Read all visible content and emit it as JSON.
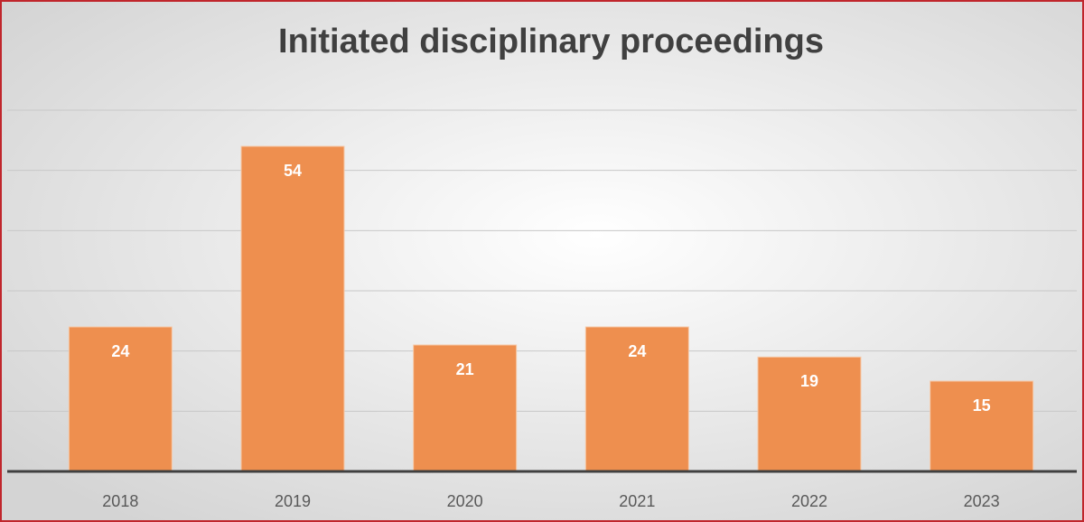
{
  "chart_data": {
    "type": "bar",
    "title": "Initiated disciplinary proceedings",
    "categories": [
      "2018",
      "2019",
      "2020",
      "2021",
      "2022",
      "2023"
    ],
    "values": [
      24,
      54,
      21,
      24,
      19,
      15
    ],
    "color": "#ee8f4f",
    "ylim": [
      0,
      60
    ],
    "yticks": [
      0,
      10,
      20,
      30,
      40,
      50,
      60
    ],
    "grid": true
  }
}
